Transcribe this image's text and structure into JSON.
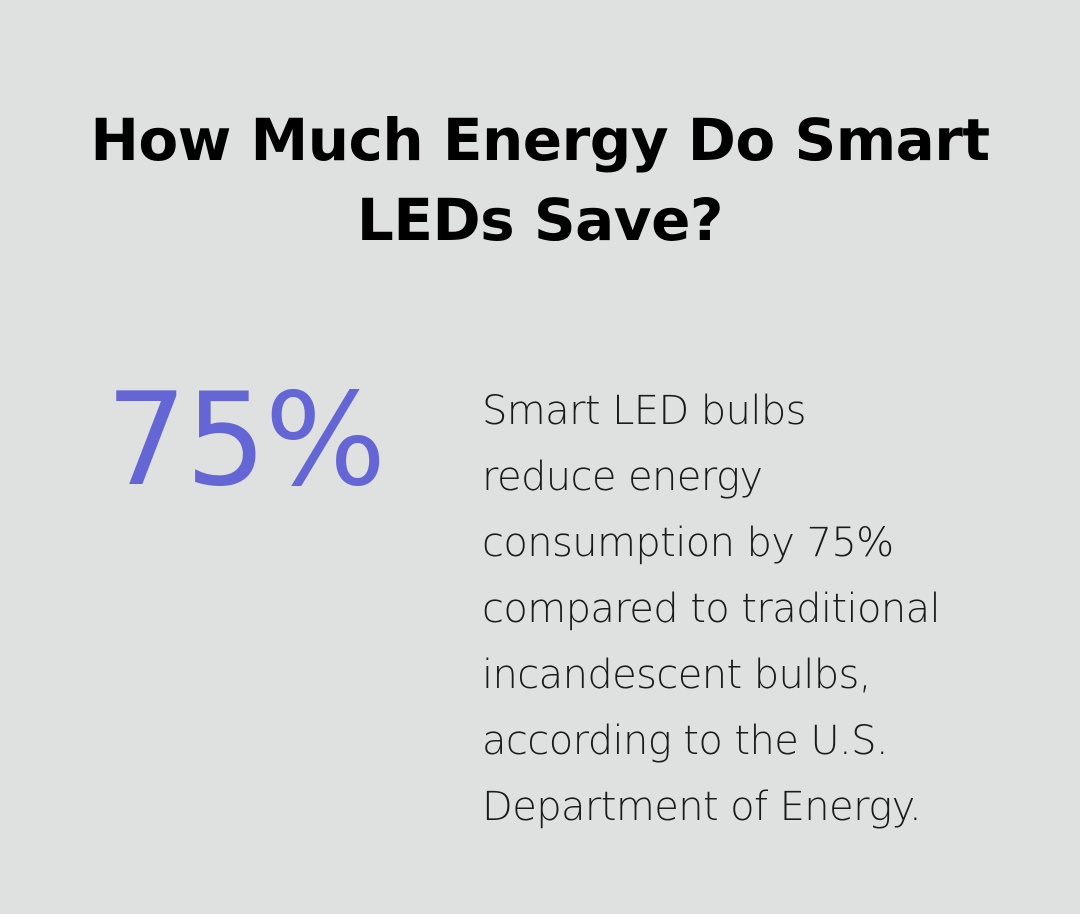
{
  "title": {
    "line1": "How Much Energy Do Smart",
    "line2": "LEDs Save?"
  },
  "stat": {
    "value": "75%"
  },
  "description": {
    "lines": [
      "Smart LED bulbs",
      "reduce energy",
      "consumption by 75%",
      "compared to traditional",
      "incandescent bulbs,",
      "according to the U.S.",
      "Department of Energy."
    ]
  },
  "colors": {
    "background": "#dfe0e0",
    "accent": "#6366d4",
    "title": "#000000",
    "text": "#1a1a1a"
  }
}
